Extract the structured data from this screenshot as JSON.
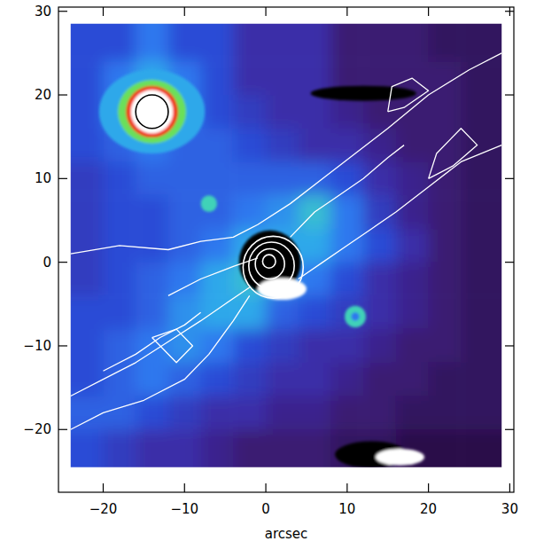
{
  "chart_data": {
    "type": "image",
    "xlabel": "arcsec",
    "xlim": [
      -25.5,
      30.5
    ],
    "ylim": [
      -27.5,
      30.5
    ],
    "xticks": [
      {
        "value": -20,
        "label": "−20"
      },
      {
        "value": -10,
        "label": "−10"
      },
      0,
      10,
      20,
      30
    ],
    "yticks": [
      {
        "value": -20,
        "label": "−20"
      },
      {
        "value": -10,
        "label": "−10"
      },
      0,
      10,
      20,
      30
    ],
    "color_range": [
      0,
      11
    ],
    "cell_x": [
      -24,
      -20,
      -16,
      -12,
      -8,
      -4,
      0,
      4,
      8,
      12,
      16,
      20,
      24,
      29
    ],
    "cell_y": [
      28.5,
      24,
      20,
      16,
      12,
      8,
      4,
      0,
      -4,
      -8,
      -12,
      -16,
      -20,
      -24.5
    ],
    "cells": [
      [
        4,
        4,
        5,
        4,
        4,
        3,
        3,
        3,
        2,
        2,
        2,
        1.5,
        1.5
      ],
      [
        4,
        5,
        6,
        5,
        4,
        3,
        3,
        3,
        2,
        2,
        2,
        2,
        1.5
      ],
      [
        4,
        5,
        6,
        5,
        4,
        3.5,
        3,
        3,
        2.5,
        2,
        2,
        2,
        1.5
      ],
      [
        4,
        4.5,
        5,
        4.5,
        4.5,
        4,
        3.5,
        3,
        3,
        2.5,
        2,
        2,
        1.5
      ],
      [
        3.5,
        4,
        4.5,
        4.5,
        4.5,
        4.5,
        4.5,
        4.5,
        4,
        3,
        2.5,
        2,
        1.5
      ],
      [
        3.5,
        4,
        4,
        4.5,
        4.5,
        5,
        5.5,
        6.5,
        5,
        3.5,
        2.5,
        2,
        1.5
      ],
      [
        3.5,
        4,
        4,
        4.5,
        5,
        6,
        6,
        6,
        5,
        4,
        3,
        2,
        1.5
      ],
      [
        3.5,
        4,
        4.5,
        5,
        6,
        6.5,
        5.5,
        5,
        4,
        3,
        2.5,
        2,
        1.5
      ],
      [
        4,
        4,
        4.5,
        5.5,
        6,
        6,
        4.5,
        4,
        3.5,
        3,
        2.5,
        2,
        1.5
      ],
      [
        4,
        4.5,
        5,
        5.5,
        5,
        4,
        3.5,
        3,
        3,
        2.5,
        2,
        2,
        1.5
      ],
      [
        4,
        4.5,
        5,
        4.5,
        4,
        3.5,
        3,
        3,
        2.5,
        2,
        2,
        1.5,
        1.5
      ],
      [
        4.5,
        4.5,
        4,
        3.5,
        3,
        3,
        2.5,
        2.5,
        2,
        2,
        1.5,
        1.5,
        1.5
      ],
      [
        4,
        3.5,
        3,
        3,
        2.5,
        2,
        2,
        2,
        1.5,
        1.5,
        1,
        1,
        1
      ]
    ],
    "sources": [
      {
        "x": -14,
        "y": 18,
        "rx": 6.5,
        "ry": 5,
        "value": 6
      },
      {
        "x": -14,
        "y": 18,
        "rx": 4.2,
        "ry": 3.8,
        "value": 8
      },
      {
        "x": -14,
        "y": 18,
        "rx": 3.2,
        "ry": 3.1,
        "value": 10
      },
      {
        "x": -14,
        "y": 18,
        "rx": 2.6,
        "ry": 2.6,
        "value": 11
      },
      {
        "x": -7,
        "y": 7,
        "rx": 1,
        "ry": 1,
        "value": 7
      },
      {
        "x": 11,
        "y": -6.5,
        "rx": 1.3,
        "ry": 1.3,
        "value": 7
      },
      {
        "x": 11,
        "y": -6.5,
        "rx": 0.5,
        "ry": 0.5,
        "value": 5
      },
      {
        "x": 12,
        "y": 20.2,
        "rx": 6.5,
        "ry": 0.9,
        "value": 0
      },
      {
        "x": 13,
        "y": -23,
        "rx": 4.5,
        "ry": 1.6,
        "value": 0
      },
      {
        "x": 16.5,
        "y": -23.3,
        "rx": 3,
        "ry": 1,
        "value": 11
      },
      {
        "x": 0.5,
        "y": 0,
        "rx": 3.8,
        "ry": 3.8,
        "value": 0
      },
      {
        "x": 2,
        "y": -3.2,
        "rx": 3,
        "ry": 1.3,
        "value": 11
      }
    ],
    "contours": [
      {
        "x": [
          -24,
          -18,
          -12,
          -8,
          -4,
          -1,
          3,
          7,
          11,
          15,
          20,
          25,
          29
        ],
        "y": [
          1,
          2,
          1.5,
          2.5,
          3,
          4.5,
          7,
          10,
          13,
          16,
          20,
          23,
          25
        ]
      },
      {
        "x": [
          -24,
          -20,
          -15,
          -10,
          -7,
          -4,
          -2
        ],
        "y": [
          -20,
          -18,
          -16.5,
          -14,
          -11,
          -7,
          -4
        ]
      },
      {
        "x": [
          4,
          7,
          10,
          13,
          16,
          20,
          24,
          29
        ],
        "y": [
          -2,
          0,
          2,
          4,
          6,
          9,
          12,
          14
        ]
      },
      {
        "x": [
          -24,
          -20,
          -16,
          -12,
          -8,
          -5,
          -2
        ],
        "y": [
          -16,
          -14,
          -12,
          -9.5,
          -7,
          -5,
          -3
        ]
      },
      {
        "x": [
          -20,
          -16,
          -13,
          -10,
          -8
        ],
        "y": [
          -13,
          -11,
          -9,
          -7.5,
          -6
        ]
      },
      {
        "x": [
          3,
          6,
          9,
          12,
          15,
          17
        ],
        "y": [
          3,
          6,
          8,
          10,
          12.5,
          14
        ]
      },
      {
        "x": [
          -12,
          -8,
          -4,
          -1
        ],
        "y": [
          -4,
          -2,
          -0.5,
          0.5
        ]
      },
      {
        "x": [
          15,
          17,
          20,
          18,
          15.5,
          15
        ],
        "y": [
          18,
          18.5,
          20.5,
          22,
          21,
          18
        ]
      },
      {
        "x": [
          20,
          23,
          26,
          24,
          21,
          20
        ],
        "y": [
          10,
          11.5,
          14,
          16,
          13,
          10
        ]
      },
      {
        "x": [
          -14,
          -11,
          -9,
          -11,
          -14
        ],
        "y": [
          -9,
          -8,
          -10,
          -12,
          -9
        ]
      }
    ],
    "rings": [
      {
        "x": -14,
        "y": 18,
        "r": 2,
        "color": "#000000"
      },
      {
        "x": 0.4,
        "y": 0.1,
        "r": 0.8,
        "color": "#ffffff"
      },
      {
        "x": 0.5,
        "y": -0.2,
        "r": 1.8,
        "color": "#ffffff"
      },
      {
        "x": 0.7,
        "y": -0.4,
        "r": 2.8,
        "color": "#ffffff"
      },
      {
        "x": 0.9,
        "y": -0.6,
        "r": 3.7,
        "color": "#ffffff"
      }
    ]
  }
}
